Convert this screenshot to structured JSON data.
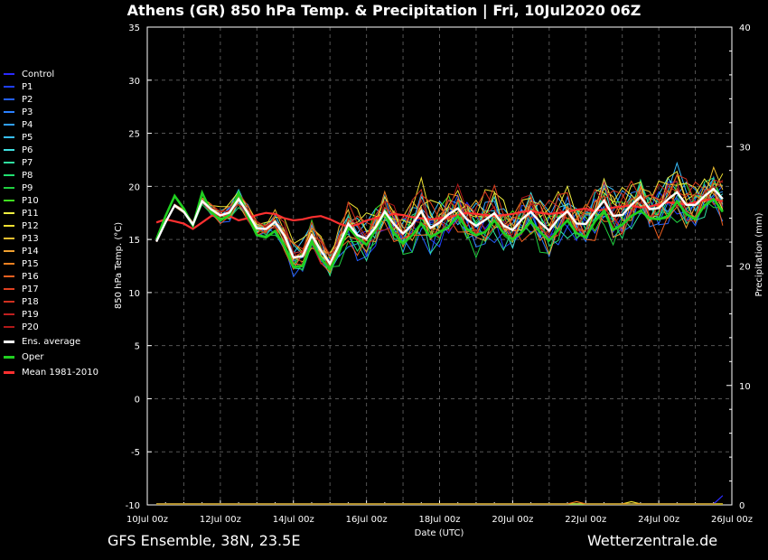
{
  "footer": {
    "model_info": "GFS Ensemble, 38N, 23.5E",
    "site": "Wetterzentrale.de"
  },
  "chart_data": {
    "type": "line",
    "title": "Athens  (GR)  850 hPa Temp. & Precipitation | Fri, 10Jul2020 06Z",
    "xlabel": "Date (UTC)",
    "ylabel": "850 hPa Temp. (°C)",
    "y2label": "Precipitation (mm)",
    "ylim": [
      -10,
      35
    ],
    "y2lim": [
      0,
      40
    ],
    "yticks": [
      -10,
      -5,
      0,
      5,
      10,
      15,
      20,
      25,
      30,
      35
    ],
    "y2ticks": [
      0,
      10,
      20,
      30,
      40
    ],
    "xlim_hours": [
      0,
      384
    ],
    "xticks": [
      "10Jul 00z",
      "12Jul 00z",
      "14Jul 00z",
      "16Jul 00z",
      "18Jul 00z",
      "20Jul 00z",
      "22Jul 00z",
      "24Jul 00z",
      "26Jul 00z"
    ],
    "grid": true,
    "legend_position": "left",
    "step_hours": 6,
    "start_hour": 6,
    "base_temperature": [
      14.8,
      16.6,
      18.2,
      17.6,
      16.4,
      18.6,
      17.8,
      17.2,
      17.5,
      18.8,
      17.5,
      16.0,
      15.9,
      16.6,
      15.3,
      13.2,
      13.4,
      15.4,
      13.9,
      12.6,
      14.4,
      16.4,
      15.3,
      15.0,
      16.2,
      17.6,
      16.3,
      15.4,
      16.3,
      17.6,
      16.0,
      16.6,
      17.4,
      17.8,
      16.7,
      16.2,
      16.8,
      17.4,
      16.3,
      15.9,
      16.8,
      17.4,
      16.5,
      15.8,
      16.9,
      17.6,
      16.5,
      16.4,
      17.4,
      18.5,
      17.2,
      17.3,
      18.2,
      19.0,
      17.8,
      17.8,
      18.6,
      19.4,
      18.3,
      18.2,
      19.0,
      19.7,
      18.7
    ],
    "member_offsets": [
      0.0,
      -0.4,
      -0.8,
      -0.6,
      0.3,
      0.7,
      0.4,
      -0.5,
      -0.2,
      -0.9,
      0.2,
      0.9,
      1.2,
      0.5,
      -0.3,
      0.1,
      -0.7,
      0.6,
      0.8,
      -0.1,
      0.4
    ],
    "members": [
      "Control",
      "P1",
      "P2",
      "P3",
      "P4",
      "P5",
      "P6",
      "P7",
      "P8",
      "P9",
      "P10",
      "P11",
      "P12",
      "P13",
      "P14",
      "P15",
      "P16",
      "P17",
      "P18",
      "P19",
      "P20"
    ],
    "member_colors": [
      "#2a2aff",
      "#1f3fff",
      "#2460ff",
      "#2a80ff",
      "#30a0ff",
      "#38c0ff",
      "#40e0e0",
      "#30e0a0",
      "#20e070",
      "#20d040",
      "#40e020",
      "#f0f040",
      "#f0e030",
      "#f0c030",
      "#f0a030",
      "#f08020",
      "#f06020",
      "#e04020",
      "#d03020",
      "#c02020",
      "#b01818"
    ],
    "ensemble_average_color": "#ffffff",
    "oper_color": "#20d020",
    "oper_offsets": [
      0.2,
      0.6,
      0.9,
      0.3,
      -0.1,
      0.8,
      -0.2,
      -0.4,
      -0.2,
      0.6,
      -0.3,
      -0.6,
      -0.7,
      -0.8,
      -0.9,
      -0.8,
      -0.9,
      -0.6,
      -0.7,
      -0.4,
      -0.6,
      -0.3,
      -0.1,
      -0.5,
      -0.3,
      -0.1,
      -0.7,
      -0.8,
      -0.9,
      -1.1,
      -0.8,
      -0.9,
      -1.2,
      -0.6,
      -0.7,
      -0.8,
      -1.1,
      -0.6,
      -0.7,
      -0.9,
      -1.1,
      -0.7,
      -0.8,
      -0.9,
      -1.0,
      -0.8,
      -0.9,
      -1.2,
      -0.7,
      -0.8,
      -1.3,
      -0.9,
      -1.0,
      -1.3,
      -0.8,
      -0.9,
      -1.4,
      -0.8,
      -0.9,
      -1.3,
      -0.8,
      -0.9,
      -1.1
    ],
    "mean_1981_2010_color": "#ff3030",
    "mean_1981_2010": [
      16.6,
      16.9,
      16.7,
      16.5,
      16.0,
      16.6,
      17.2,
      17.4,
      17.2,
      16.8,
      17.0,
      17.3,
      17.5,
      17.4,
      17.0,
      16.8,
      16.9,
      17.1,
      17.2,
      16.9,
      16.5,
      16.2,
      16.4,
      16.8,
      17.0,
      17.2,
      17.4,
      17.3,
      17.1,
      17.0,
      16.9,
      17.0,
      17.1,
      17.3,
      17.5,
      17.4,
      17.3,
      17.2,
      17.3,
      17.4,
      17.6,
      17.7,
      17.5,
      17.4,
      17.5,
      17.6,
      17.8,
      17.9,
      17.7,
      17.8,
      18.0,
      18.1,
      18.2,
      18.0,
      18.1,
      18.3,
      18.5,
      18.4,
      18.3,
      18.5,
      18.7,
      18.8,
      18.6
    ],
    "precipitation_mm": {
      "Control": [
        0,
        0,
        0,
        0,
        0,
        0,
        0,
        0,
        0,
        0,
        0,
        0,
        0,
        0,
        0,
        0,
        0,
        0,
        0,
        0,
        0,
        0,
        0,
        0,
        0,
        0,
        0,
        0,
        0,
        0,
        0,
        0,
        0,
        0,
        0,
        0,
        0,
        0,
        0,
        0,
        0,
        0,
        0,
        0,
        0,
        0,
        0,
        0,
        0,
        0,
        0,
        0,
        0,
        0,
        0,
        0,
        0,
        0,
        0,
        0,
        0,
        0,
        0.7
      ],
      "P12": [
        0,
        0,
        0,
        0,
        0,
        0,
        0,
        0,
        0,
        0,
        0,
        0,
        0,
        0,
        0,
        0,
        0,
        0,
        0,
        0,
        0,
        0,
        0,
        0,
        0,
        0,
        0,
        0,
        0,
        0,
        0,
        0,
        0,
        0,
        0,
        0,
        0,
        0,
        0,
        0,
        0,
        0,
        0,
        0,
        0,
        0,
        0,
        0,
        0,
        0,
        0,
        0,
        0.2,
        0,
        0,
        0,
        0,
        0,
        0,
        0,
        0,
        0,
        0
      ],
      "P15": [
        0,
        0,
        0,
        0,
        0,
        0,
        0,
        0,
        0,
        0,
        0,
        0,
        0,
        0,
        0,
        0,
        0,
        0,
        0,
        0,
        0,
        0,
        0,
        0,
        0,
        0,
        0,
        0,
        0,
        0,
        0,
        0,
        0,
        0,
        0,
        0,
        0,
        0,
        0,
        0,
        0,
        0,
        0,
        0,
        0,
        0,
        0.2,
        0,
        0,
        0,
        0,
        0,
        0,
        0,
        0,
        0,
        0,
        0,
        0,
        0,
        0,
        0,
        0
      ]
    },
    "legend": [
      "Control",
      "P1",
      "P2",
      "P3",
      "P4",
      "P5",
      "P6",
      "P7",
      "P8",
      "P9",
      "P10",
      "P11",
      "P12",
      "P13",
      "P14",
      "P15",
      "P16",
      "P17",
      "P18",
      "P19",
      "P20",
      "Ens. average",
      "Oper",
      "Mean 1981-2010"
    ]
  }
}
